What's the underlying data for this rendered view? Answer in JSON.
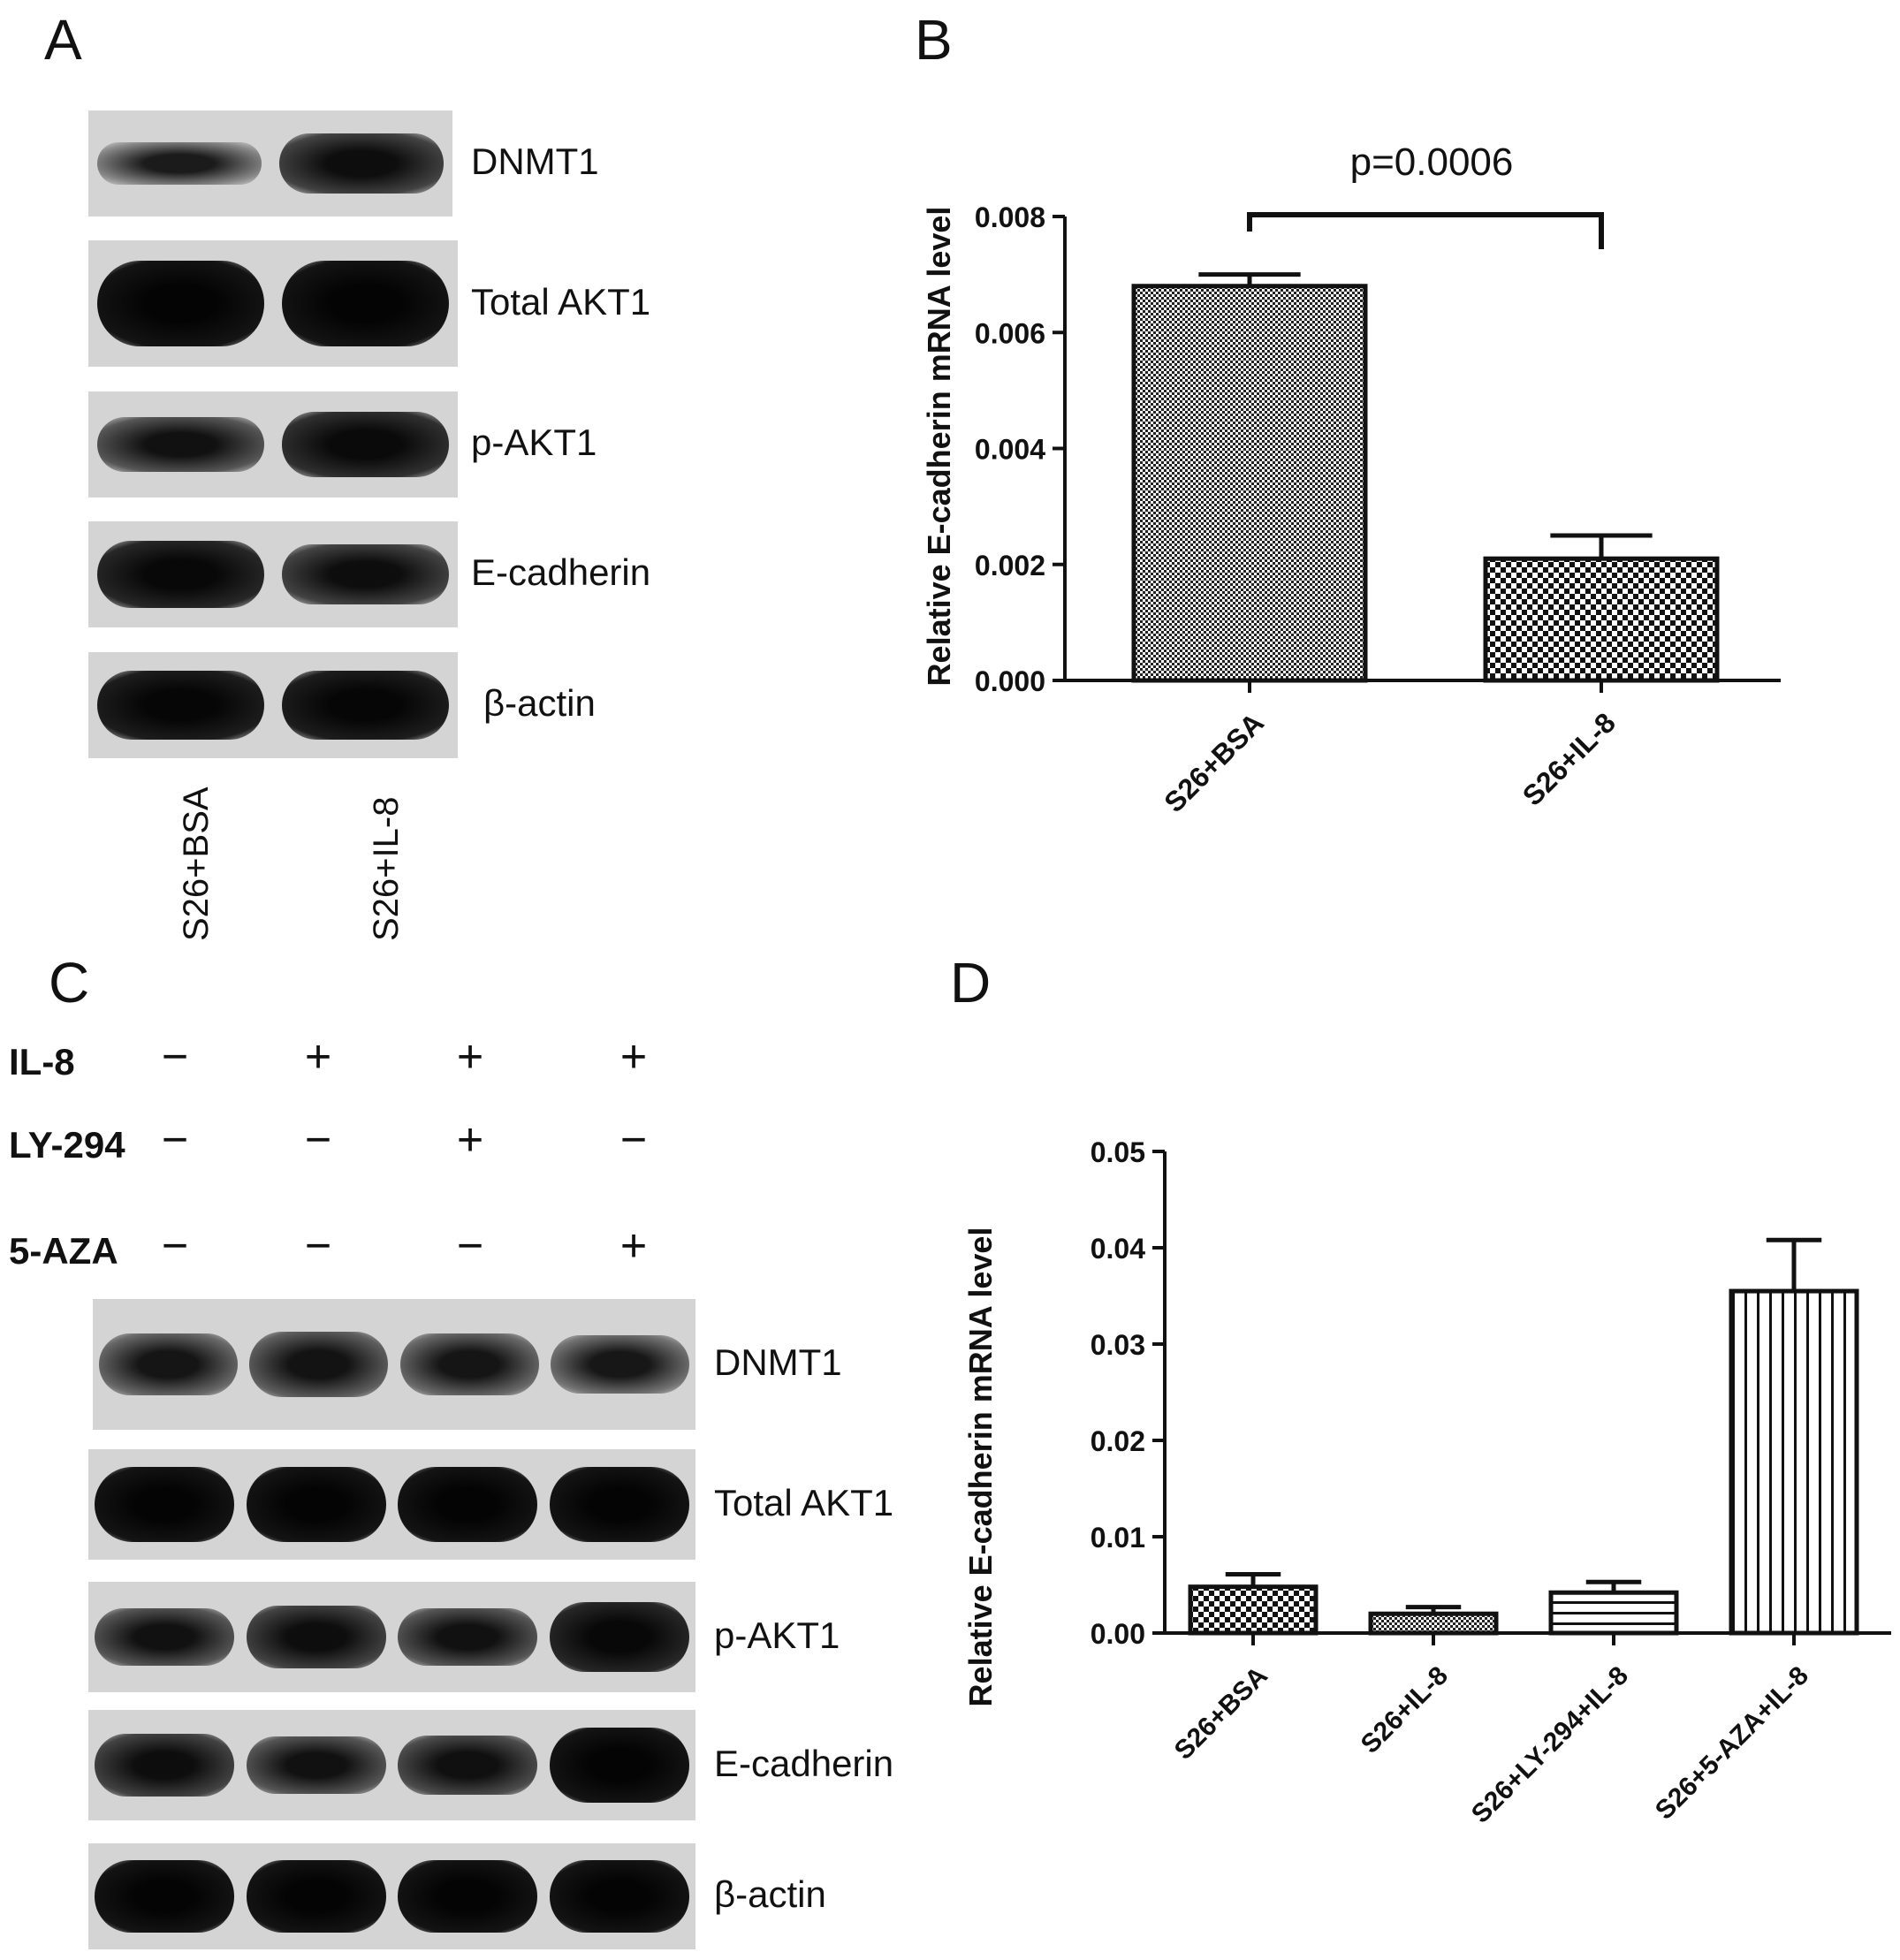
{
  "panels": {
    "A": {
      "letter": "A",
      "bands": [
        "DNMT1",
        "Total  AKT1",
        "p-AKT1",
        "E-cadherin",
        "β-actin"
      ],
      "lanes": [
        "S26+BSA",
        "S26+IL-8"
      ],
      "intensity": [
        [
          0.35,
          0.7
        ],
        [
          0.95,
          0.95
        ],
        [
          0.6,
          0.8
        ],
        [
          0.85,
          0.7
        ],
        [
          0.9,
          0.9
        ]
      ]
    },
    "B": {
      "letter": "B",
      "annotation": "p=0.0006"
    },
    "C": {
      "letter": "C",
      "conditions": [
        {
          "label": "IL-8",
          "signs": [
            "−",
            "+",
            "+",
            "+"
          ]
        },
        {
          "label": "LY-294",
          "signs": [
            "−",
            "−",
            "+",
            "−"
          ]
        },
        {
          "label": "5-AZA",
          "signs": [
            "−",
            "−",
            "−",
            "+"
          ]
        }
      ],
      "bands": [
        "DNMT1",
        "Total AKT1",
        "p-AKT1",
        "E-cadherin",
        "β-actin"
      ],
      "intensity": [
        [
          0.5,
          0.55,
          0.5,
          0.45
        ],
        [
          0.95,
          0.95,
          0.95,
          0.95
        ],
        [
          0.6,
          0.7,
          0.6,
          0.85
        ],
        [
          0.7,
          0.6,
          0.65,
          0.95
        ],
        [
          0.95,
          0.95,
          0.95,
          0.95
        ]
      ]
    },
    "D": {
      "letter": "D"
    }
  },
  "chart_data": [
    {
      "type": "bar",
      "panel": "B",
      "categories": [
        "S26+BSA",
        "S26+IL-8"
      ],
      "values": [
        0.0068,
        0.0021
      ],
      "errors": [
        0.0002,
        0.0004
      ],
      "patterns": [
        "fine-check",
        "check"
      ],
      "ylabel": "Relative E-cadherin mRNA level",
      "ylim": [
        0,
        0.008
      ],
      "yticks": [
        "0.000",
        "0.002",
        "0.004",
        "0.006",
        "0.008"
      ],
      "annotation": "p=0.0006"
    },
    {
      "type": "bar",
      "panel": "D",
      "categories": [
        "S26+BSA",
        "S26+IL-8",
        "S26+LY-294+IL-8",
        "S26+5-AZA+IL-8"
      ],
      "values": [
        0.0048,
        0.002,
        0.0042,
        0.0355
      ],
      "errors": [
        0.0013,
        0.0007,
        0.0011,
        0.0053
      ],
      "patterns": [
        "check",
        "fine-check",
        "hlines",
        "vlines"
      ],
      "ylabel": "Relative E-cadherin mRNA level",
      "ylim": [
        0,
        0.05
      ],
      "yticks": [
        "0.00",
        "0.01",
        "0.02",
        "0.03",
        "0.04",
        "0.05"
      ]
    }
  ]
}
